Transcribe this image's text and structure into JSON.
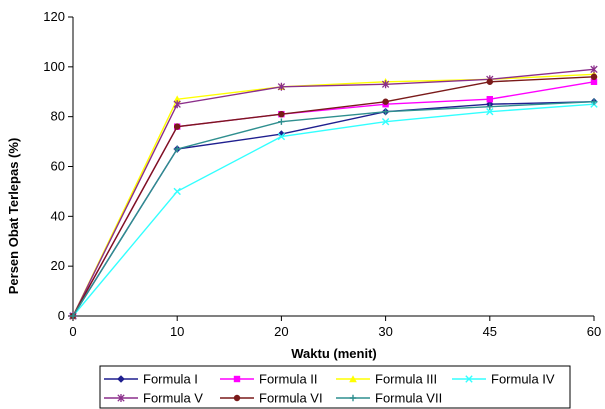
{
  "chart_data": {
    "type": "line",
    "xlabel": "Waktu (menit)",
    "ylabel": "Persen Obat Terlepas (%)",
    "categories": [
      "0",
      "10",
      "20",
      "30",
      "45",
      "60"
    ],
    "ylim": [
      0,
      120
    ],
    "yticks": [
      0,
      20,
      40,
      60,
      80,
      100,
      120
    ],
    "grid": false,
    "legend_position": "bottom",
    "series": [
      {
        "name": "Formula I",
        "color": "#1f1f8f",
        "marker": "diamond",
        "values": [
          0,
          67,
          73,
          82,
          85,
          86
        ]
      },
      {
        "name": "Formula II",
        "color": "#ff00ff",
        "marker": "square",
        "values": [
          0,
          76,
          81,
          85,
          87,
          94
        ]
      },
      {
        "name": "Formula III",
        "color": "#ffff00",
        "marker": "triangle",
        "values": [
          0,
          87,
          92,
          94,
          95,
          97
        ]
      },
      {
        "name": "Formula IV",
        "color": "#33ffff",
        "marker": "x",
        "values": [
          0,
          50,
          72,
          78,
          82,
          85
        ]
      },
      {
        "name": "Formula V",
        "color": "#8b2f8b",
        "marker": "star",
        "values": [
          0,
          85,
          92,
          93,
          95,
          99
        ]
      },
      {
        "name": "Formula VI",
        "color": "#7a1a1a",
        "marker": "circle",
        "values": [
          0,
          76,
          81,
          86,
          94,
          96
        ]
      },
      {
        "name": "Formula VII",
        "color": "#2f8f8f",
        "marker": "plus",
        "values": [
          0,
          67,
          78,
          82,
          84,
          86
        ]
      }
    ]
  }
}
